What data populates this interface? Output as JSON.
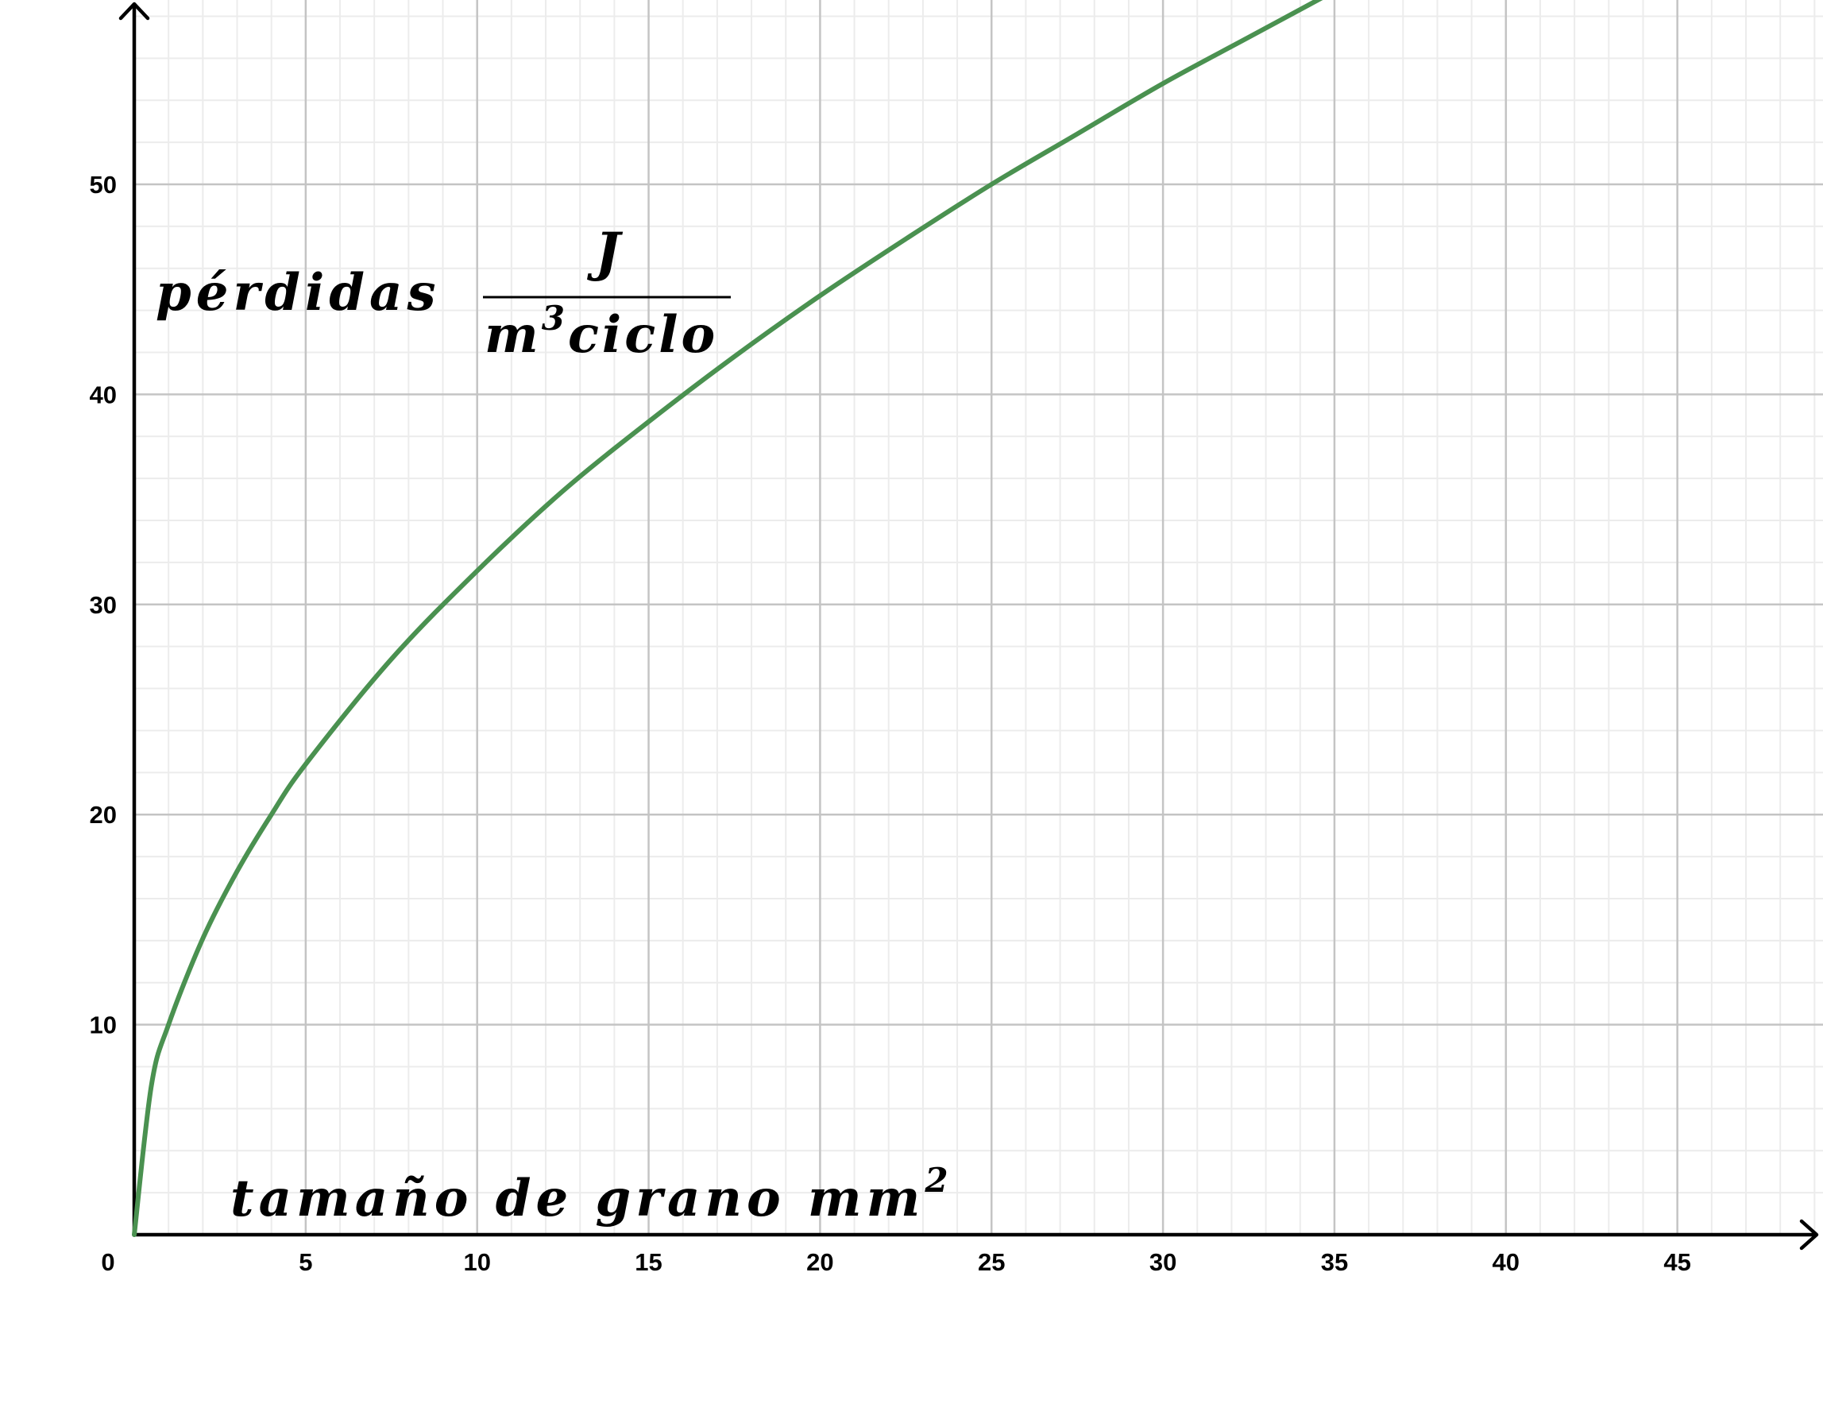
{
  "chart_data": {
    "type": "line",
    "title": "",
    "xlim": [
      0,
      49
    ],
    "ylim": [
      0,
      58
    ],
    "x_ticks": [
      5,
      10,
      15,
      20,
      25,
      30,
      35,
      40,
      45
    ],
    "y_ticks": [
      10,
      20,
      30,
      40,
      50
    ],
    "origin_label": "0",
    "grid": "on (major every 5, minor every 1 on x and 2 on y)",
    "xlabel": {
      "text": "tamaño de grano mm",
      "superscript": "2"
    },
    "ylabel": {
      "text": "pérdidas",
      "fraction_numerator": "J",
      "fraction_denominator_base": "m",
      "fraction_denominator_sup": "3",
      "fraction_denominator_rest": "ciclo"
    },
    "series": [
      {
        "color": "#4a9150",
        "points": [
          [
            0,
            0
          ],
          [
            0.5,
            7.1
          ],
          [
            1,
            10.0
          ],
          [
            2,
            14.1
          ],
          [
            3,
            17.3
          ],
          [
            4,
            20.0
          ],
          [
            5,
            22.4
          ],
          [
            7.5,
            27.4
          ],
          [
            10,
            31.6
          ],
          [
            12.5,
            35.4
          ],
          [
            15,
            38.7
          ],
          [
            17.5,
            41.8
          ],
          [
            20,
            44.7
          ],
          [
            22.5,
            47.4
          ],
          [
            25,
            50.0
          ],
          [
            27.5,
            52.4
          ],
          [
            30,
            54.8
          ],
          [
            32.5,
            57.0
          ],
          [
            35,
            59.2
          ]
        ]
      }
    ]
  }
}
